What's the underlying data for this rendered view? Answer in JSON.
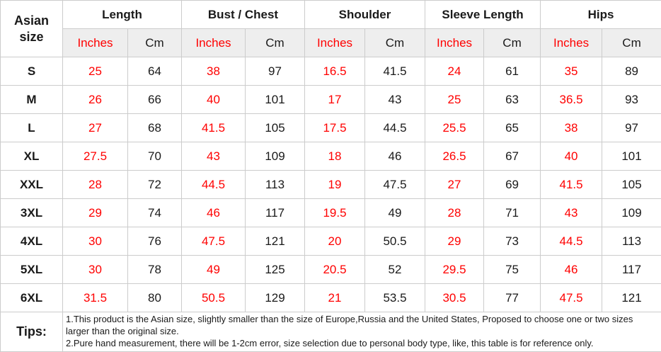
{
  "colors": {
    "highlight_red": "#ff0000",
    "text_black": "#1a1a1a",
    "unit_header_background": "#eeeeee",
    "grid_border": "#cccccc"
  },
  "chart_data": {
    "type": "table",
    "corner_header": "Asian size",
    "column_groups": [
      "Length",
      "Bust / Chest",
      "Shoulder",
      "Sleeve Length",
      "Hips"
    ],
    "unit_columns": [
      "Inches",
      "Cm"
    ],
    "sizes": [
      "S",
      "M",
      "L",
      "XL",
      "XXL",
      "3XL",
      "4XL",
      "5XL",
      "6XL"
    ],
    "rows": [
      {
        "size": "S",
        "values": [
          "25",
          "64",
          "38",
          "97",
          "16.5",
          "41.5",
          "24",
          "61",
          "35",
          "89"
        ]
      },
      {
        "size": "M",
        "values": [
          "26",
          "66",
          "40",
          "101",
          "17",
          "43",
          "25",
          "63",
          "36.5",
          "93"
        ]
      },
      {
        "size": "L",
        "values": [
          "27",
          "68",
          "41.5",
          "105",
          "17.5",
          "44.5",
          "25.5",
          "65",
          "38",
          "97"
        ]
      },
      {
        "size": "XL",
        "values": [
          "27.5",
          "70",
          "43",
          "109",
          "18",
          "46",
          "26.5",
          "67",
          "40",
          "101"
        ]
      },
      {
        "size": "XXL",
        "values": [
          "28",
          "72",
          "44.5",
          "113",
          "19",
          "47.5",
          "27",
          "69",
          "41.5",
          "105"
        ]
      },
      {
        "size": "3XL",
        "values": [
          "29",
          "74",
          "46",
          "117",
          "19.5",
          "49",
          "28",
          "71",
          "43",
          "109"
        ]
      },
      {
        "size": "4XL",
        "values": [
          "30",
          "76",
          "47.5",
          "121",
          "20",
          "50.5",
          "29",
          "73",
          "44.5",
          "113"
        ]
      },
      {
        "size": "5XL",
        "values": [
          "30",
          "78",
          "49",
          "125",
          "20.5",
          "52",
          "29.5",
          "75",
          "46",
          "117"
        ]
      },
      {
        "size": "6XL",
        "values": [
          "31.5",
          "80",
          "50.5",
          "129",
          "21",
          "53.5",
          "30.5",
          "77",
          "47.5",
          "121"
        ]
      }
    ],
    "series": [
      {
        "name": "Length (Inches)",
        "values": [
          25,
          26,
          27,
          27.5,
          28,
          29,
          30,
          30,
          31.5
        ]
      },
      {
        "name": "Length (Cm)",
        "values": [
          64,
          66,
          68,
          70,
          72,
          74,
          76,
          78,
          80
        ]
      },
      {
        "name": "Bust / Chest (Inches)",
        "values": [
          38,
          40,
          41.5,
          43,
          44.5,
          46,
          47.5,
          49,
          50.5
        ]
      },
      {
        "name": "Bust / Chest (Cm)",
        "values": [
          97,
          101,
          105,
          109,
          113,
          117,
          121,
          125,
          129
        ]
      },
      {
        "name": "Shoulder (Inches)",
        "values": [
          16.5,
          17,
          17.5,
          18,
          19,
          19.5,
          20,
          20.5,
          21
        ]
      },
      {
        "name": "Shoulder (Cm)",
        "values": [
          41.5,
          43,
          44.5,
          46,
          47.5,
          49,
          50.5,
          52,
          53.5
        ]
      },
      {
        "name": "Sleeve Length (Inches)",
        "values": [
          24,
          25,
          25.5,
          26.5,
          27,
          28,
          29,
          29.5,
          30.5
        ]
      },
      {
        "name": "Sleeve Length (Cm)",
        "values": [
          61,
          63,
          65,
          67,
          69,
          71,
          73,
          75,
          77
        ]
      },
      {
        "name": "Hips (Inches)",
        "values": [
          35,
          36.5,
          38,
          40,
          41.5,
          43,
          44.5,
          46,
          47.5
        ]
      },
      {
        "name": "Hips (Cm)",
        "values": [
          89,
          93,
          97,
          101,
          105,
          109,
          113,
          117,
          121
        ]
      }
    ],
    "tips": {
      "label": "Tips:",
      "lines": [
        "1.This product is the Asian size, slightly smaller than the size of Europe,Russia and the United States, Proposed to choose one or two sizes larger than the original size.",
        "2.Pure hand measurement, there will be 1-2cm error, size selection due to personal body type, like, this table is for reference only."
      ]
    }
  }
}
